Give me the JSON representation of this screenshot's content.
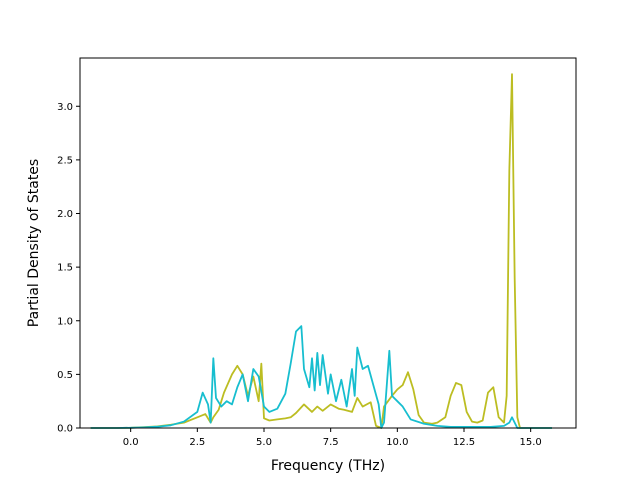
{
  "chart_data": {
    "type": "line",
    "title": "",
    "xlabel": "Frequency (THz)",
    "ylabel": "Partial Density of States",
    "xlim": [
      -1.9,
      16.7
    ],
    "ylim": [
      0.0,
      3.45
    ],
    "x_ticks": [
      0.0,
      2.5,
      5.0,
      7.5,
      10.0,
      12.5,
      15.0
    ],
    "x_tick_labels": [
      "0.0",
      "2.5",
      "5.0",
      "7.5",
      "10.0",
      "12.5",
      "15.0"
    ],
    "y_ticks": [
      0.0,
      0.5,
      1.0,
      1.5,
      2.0,
      2.5,
      3.0
    ],
    "y_tick_labels": [
      "0.0",
      "0.5",
      "1.0",
      "1.5",
      "2.0",
      "2.5",
      "3.0"
    ],
    "grid": false,
    "legend": "none",
    "series": [
      {
        "color": "#bcbd22",
        "x": [
          -1.5,
          -0.5,
          0.0,
          0.5,
          1.0,
          1.5,
          2.0,
          2.5,
          2.8,
          3.0,
          3.1,
          3.3,
          3.5,
          3.8,
          4.0,
          4.2,
          4.4,
          4.6,
          4.8,
          4.9,
          5.0,
          5.2,
          5.5,
          5.8,
          6.0,
          6.2,
          6.5,
          6.8,
          7.0,
          7.2,
          7.5,
          7.8,
          8.0,
          8.3,
          8.5,
          8.7,
          9.0,
          9.2,
          9.4,
          9.5,
          9.8,
          10.0,
          10.2,
          10.4,
          10.6,
          10.8,
          11.0,
          11.3,
          11.5,
          11.8,
          12.0,
          12.2,
          12.4,
          12.6,
          12.8,
          13.0,
          13.2,
          13.4,
          13.6,
          13.8,
          14.0,
          14.1,
          14.2,
          14.3,
          14.4,
          14.5,
          14.6,
          15.0,
          15.8
        ],
        "y": [
          0.0,
          0.0,
          0.002,
          0.008,
          0.015,
          0.03,
          0.05,
          0.1,
          0.13,
          0.05,
          0.1,
          0.17,
          0.33,
          0.5,
          0.58,
          0.5,
          0.3,
          0.48,
          0.25,
          0.6,
          0.09,
          0.07,
          0.08,
          0.09,
          0.1,
          0.14,
          0.22,
          0.15,
          0.2,
          0.16,
          0.22,
          0.18,
          0.17,
          0.15,
          0.28,
          0.2,
          0.24,
          0.02,
          0.0,
          0.2,
          0.3,
          0.36,
          0.4,
          0.52,
          0.36,
          0.12,
          0.05,
          0.04,
          0.05,
          0.1,
          0.3,
          0.42,
          0.4,
          0.15,
          0.06,
          0.05,
          0.07,
          0.33,
          0.38,
          0.1,
          0.05,
          0.3,
          2.4,
          3.3,
          1.4,
          0.1,
          0.0,
          0.0,
          0.0
        ]
      },
      {
        "color": "#17becf",
        "x": [
          -1.5,
          -0.5,
          0.0,
          0.5,
          1.0,
          1.5,
          2.0,
          2.5,
          2.7,
          2.9,
          3.0,
          3.1,
          3.2,
          3.4,
          3.6,
          3.8,
          4.0,
          4.2,
          4.4,
          4.6,
          4.8,
          5.0,
          5.2,
          5.5,
          5.8,
          6.0,
          6.2,
          6.4,
          6.5,
          6.7,
          6.8,
          6.9,
          7.0,
          7.1,
          7.2,
          7.4,
          7.5,
          7.7,
          7.9,
          8.1,
          8.3,
          8.4,
          8.5,
          8.7,
          8.9,
          9.1,
          9.3,
          9.4,
          9.5,
          9.7,
          9.8,
          10.0,
          10.2,
          10.5,
          11.0,
          11.5,
          12.0,
          12.5,
          13.0,
          13.5,
          14.0,
          14.2,
          14.3,
          14.5,
          15.0,
          15.8
        ],
        "y": [
          0.0,
          0.0,
          0.002,
          0.006,
          0.012,
          0.025,
          0.06,
          0.15,
          0.33,
          0.22,
          0.05,
          0.65,
          0.28,
          0.2,
          0.25,
          0.22,
          0.38,
          0.5,
          0.25,
          0.55,
          0.48,
          0.2,
          0.15,
          0.18,
          0.32,
          0.6,
          0.9,
          0.95,
          0.55,
          0.38,
          0.65,
          0.35,
          0.7,
          0.4,
          0.68,
          0.32,
          0.5,
          0.25,
          0.45,
          0.2,
          0.55,
          0.3,
          0.75,
          0.55,
          0.58,
          0.4,
          0.22,
          0.0,
          0.05,
          0.72,
          0.3,
          0.25,
          0.2,
          0.08,
          0.04,
          0.02,
          0.01,
          0.01,
          0.01,
          0.01,
          0.02,
          0.05,
          0.1,
          0.0,
          0.0,
          0.0
        ]
      }
    ]
  }
}
